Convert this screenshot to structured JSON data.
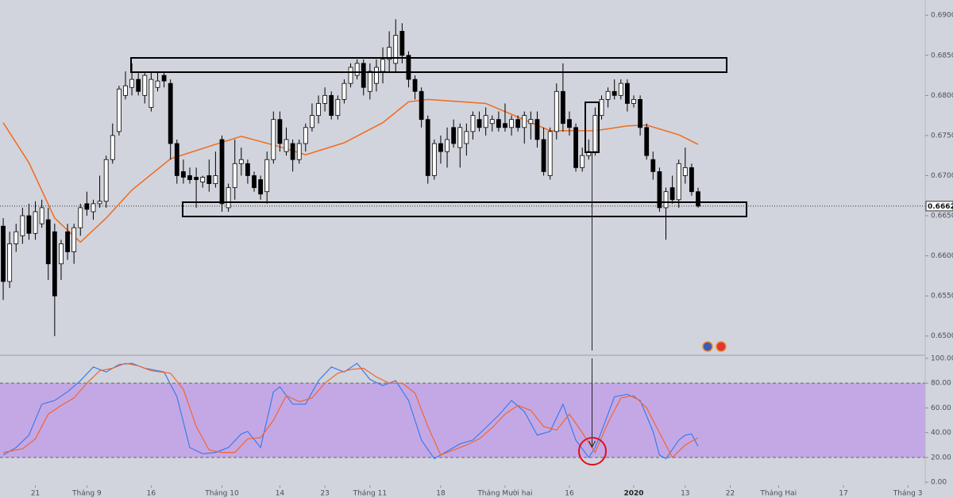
{
  "chart_data": [
    {
      "type": "candlestick",
      "up_color": "#ffffff",
      "down_color": "#000000",
      "wick_color": "#000000",
      "xlim": [
        -0.5,
        143.3
      ],
      "ylim": [
        0.6476,
        0.6919
      ],
      "xticks": [
        {
          "value": 5,
          "label": "21"
        },
        {
          "value": 13,
          "label": "Tháng 9"
        },
        {
          "value": 23,
          "label": "16"
        },
        {
          "value": 34,
          "label": "Tháng 10"
        },
        {
          "value": 43,
          "label": "14"
        },
        {
          "value": 50,
          "label": "23"
        },
        {
          "value": 57,
          "label": "Tháng 11"
        },
        {
          "value": 68,
          "label": "18"
        },
        {
          "value": 78,
          "label": "Tháng Mười hai"
        },
        {
          "value": 88,
          "label": "16"
        },
        {
          "value": 98,
          "label": "2020",
          "bold": true
        },
        {
          "value": 106,
          "label": "13"
        },
        {
          "value": 113,
          "label": "22"
        },
        {
          "value": 120.5,
          "label": "Tháng Hai"
        },
        {
          "value": 130.6,
          "label": "17"
        },
        {
          "value": 140.6,
          "label": "Tháng 3"
        }
      ],
      "yticks": [
        {
          "value": 0.65,
          "label": "0.65000"
        },
        {
          "value": 0.655,
          "label": "0.65500"
        },
        {
          "value": 0.66,
          "label": "0.66000"
        },
        {
          "value": 0.665,
          "label": "0.66500"
        },
        {
          "value": 0.67,
          "label": "0.67000"
        },
        {
          "value": 0.675,
          "label": "0.67500"
        },
        {
          "value": 0.68,
          "label": "0.68000"
        },
        {
          "value": 0.685,
          "label": "0.68500"
        },
        {
          "value": 0.69,
          "label": "0.69000"
        }
      ],
      "open": [
        0.6637,
        0.6568,
        0.6615,
        0.6625,
        0.665,
        0.6628,
        0.664,
        0.6645,
        0.663,
        0.659,
        0.663,
        0.6605,
        0.6635,
        0.6665,
        0.6655,
        0.6665,
        0.6668,
        0.672,
        0.6755,
        0.68,
        0.681,
        0.682,
        0.68,
        0.6785,
        0.681,
        0.6825,
        0.6815,
        0.674,
        0.6705,
        0.67,
        0.6698,
        0.6692,
        0.67,
        0.669,
        0.6745,
        0.666,
        0.6685,
        0.6715,
        0.6715,
        0.67,
        0.6695,
        0.668,
        0.672,
        0.677,
        0.673,
        0.674,
        0.672,
        0.674,
        0.676,
        0.6775,
        0.679,
        0.68,
        0.6775,
        0.6795,
        0.6815,
        0.6825,
        0.684,
        0.6805,
        0.6815,
        0.683,
        0.6845,
        0.684,
        0.688,
        0.685,
        0.682,
        0.6805,
        0.677,
        0.67,
        0.674,
        0.673,
        0.676,
        0.6735,
        0.674,
        0.6755,
        0.677,
        0.676,
        0.6765,
        0.677,
        0.6765,
        0.676,
        0.677,
        0.676,
        0.6765,
        0.677,
        0.6745,
        0.67,
        0.6755,
        0.6805,
        0.677,
        0.676,
        0.671,
        0.6725,
        0.673,
        0.6775,
        0.6795,
        0.6805,
        0.68,
        0.6815,
        0.679,
        0.6795,
        0.676,
        0.672,
        0.6705,
        0.666,
        0.6685,
        0.667,
        0.67,
        0.671,
        0.668
      ],
      "high": [
        0.6647,
        0.663,
        0.664,
        0.666,
        0.6665,
        0.6668,
        0.667,
        0.666,
        0.664,
        0.662,
        0.664,
        0.664,
        0.6665,
        0.668,
        0.667,
        0.67,
        0.6725,
        0.6765,
        0.6812,
        0.683,
        0.684,
        0.683,
        0.683,
        0.683,
        0.683,
        0.683,
        0.682,
        0.6745,
        0.672,
        0.671,
        0.671,
        0.67,
        0.672,
        0.673,
        0.675,
        0.669,
        0.6745,
        0.6735,
        0.672,
        0.6705,
        0.67,
        0.673,
        0.678,
        0.678,
        0.676,
        0.6745,
        0.6745,
        0.6765,
        0.679,
        0.68,
        0.681,
        0.6805,
        0.68,
        0.682,
        0.684,
        0.6845,
        0.6845,
        0.684,
        0.6845,
        0.686,
        0.688,
        0.6895,
        0.689,
        0.6855,
        0.6825,
        0.681,
        0.6775,
        0.6745,
        0.675,
        0.676,
        0.677,
        0.6765,
        0.6765,
        0.678,
        0.678,
        0.6785,
        0.6775,
        0.678,
        0.679,
        0.6775,
        0.6775,
        0.678,
        0.678,
        0.678,
        0.676,
        0.676,
        0.6815,
        0.684,
        0.678,
        0.6765,
        0.6735,
        0.6745,
        0.6785,
        0.68,
        0.681,
        0.682,
        0.682,
        0.682,
        0.68,
        0.68,
        0.6765,
        0.673,
        0.671,
        0.6685,
        0.67,
        0.672,
        0.6735,
        0.6715,
        0.6685
      ],
      "low": [
        0.6545,
        0.656,
        0.6605,
        0.6615,
        0.662,
        0.662,
        0.6635,
        0.657,
        0.65,
        0.657,
        0.6595,
        0.659,
        0.6625,
        0.665,
        0.6645,
        0.666,
        0.666,
        0.6715,
        0.675,
        0.6795,
        0.68,
        0.68,
        0.679,
        0.678,
        0.6805,
        0.681,
        0.672,
        0.669,
        0.669,
        0.669,
        0.666,
        0.6685,
        0.668,
        0.6685,
        0.6655,
        0.6655,
        0.667,
        0.67,
        0.669,
        0.668,
        0.667,
        0.6665,
        0.6715,
        0.673,
        0.6725,
        0.6705,
        0.6715,
        0.673,
        0.6755,
        0.6765,
        0.678,
        0.677,
        0.677,
        0.679,
        0.681,
        0.682,
        0.68,
        0.6795,
        0.6805,
        0.6815,
        0.683,
        0.683,
        0.684,
        0.681,
        0.6795,
        0.676,
        0.669,
        0.6695,
        0.6715,
        0.671,
        0.6735,
        0.671,
        0.6725,
        0.6745,
        0.6755,
        0.675,
        0.6755,
        0.6755,
        0.6755,
        0.675,
        0.6755,
        0.674,
        0.6745,
        0.6735,
        0.67,
        0.6695,
        0.6745,
        0.6755,
        0.675,
        0.6705,
        0.6705,
        0.672,
        0.6725,
        0.677,
        0.6785,
        0.6795,
        0.6795,
        0.678,
        0.6785,
        0.675,
        0.672,
        0.6695,
        0.6655,
        0.662,
        0.6665,
        0.666,
        0.669,
        0.6675,
        0.666
      ],
      "close": [
        0.6568,
        0.6615,
        0.663,
        0.665,
        0.6628,
        0.6655,
        0.666,
        0.659,
        0.655,
        0.6615,
        0.6605,
        0.6635,
        0.666,
        0.6658,
        0.6665,
        0.6668,
        0.672,
        0.675,
        0.6808,
        0.6812,
        0.682,
        0.6805,
        0.6825,
        0.682,
        0.6818,
        0.6818,
        0.674,
        0.67,
        0.6698,
        0.6695,
        0.6695,
        0.6698,
        0.669,
        0.67,
        0.6665,
        0.6685,
        0.6715,
        0.672,
        0.67,
        0.6685,
        0.6677,
        0.672,
        0.677,
        0.674,
        0.6745,
        0.672,
        0.674,
        0.676,
        0.6775,
        0.679,
        0.68,
        0.6775,
        0.6795,
        0.6815,
        0.6835,
        0.684,
        0.681,
        0.683,
        0.6835,
        0.6845,
        0.686,
        0.6875,
        0.685,
        0.682,
        0.6805,
        0.677,
        0.67,
        0.674,
        0.673,
        0.6745,
        0.674,
        0.676,
        0.6755,
        0.6775,
        0.676,
        0.6775,
        0.677,
        0.676,
        0.676,
        0.677,
        0.676,
        0.6775,
        0.677,
        0.6745,
        0.6705,
        0.6755,
        0.6805,
        0.6765,
        0.676,
        0.671,
        0.6725,
        0.673,
        0.6775,
        0.6795,
        0.6805,
        0.68,
        0.6815,
        0.679,
        0.6795,
        0.676,
        0.6725,
        0.6705,
        0.666,
        0.668,
        0.667,
        0.6715,
        0.671,
        0.668,
        0.6662
      ],
      "overlays": [
        {
          "color": "#f26a1b",
          "x": [
            0,
            4,
            8,
            12,
            16,
            20,
            26,
            33,
            37,
            43,
            47,
            53,
            59,
            63,
            66,
            75,
            85,
            92,
            97,
            100,
            105,
            108
          ],
          "values": [
            0.6766,
            0.6716,
            0.6647,
            0.6617,
            0.6647,
            0.6682,
            0.6721,
            0.6739,
            0.6749,
            0.6736,
            0.6726,
            0.6741,
            0.6766,
            0.6792,
            0.6795,
            0.679,
            0.6756,
            0.6756,
            0.6762,
            0.6763,
            0.6751,
            0.6739
          ]
        }
      ],
      "last_price": 0.6662,
      "last_price_label": "0.66620"
    },
    {
      "type": "oscillator",
      "ylim": [
        -2.5,
        102.5
      ],
      "yticks": [
        {
          "value": 0,
          "label": "0.00"
        },
        {
          "value": 20,
          "label": "20.00"
        },
        {
          "value": 40,
          "label": "40.00"
        },
        {
          "value": 60,
          "label": "60.00"
        },
        {
          "value": 80,
          "label": "80.00"
        },
        {
          "value": 100,
          "label": "100.00"
        }
      ],
      "band": [
        20,
        80
      ],
      "band_color": "#c4a8e6",
      "series": [
        {
          "color": "#3d7bea",
          "x": [
            0,
            2,
            4,
            6,
            8,
            10,
            12,
            14,
            16,
            18,
            20,
            22,
            25,
            27,
            29,
            31,
            33,
            35,
            37,
            38,
            40,
            42,
            43,
            45,
            47,
            49,
            51,
            53,
            55,
            57,
            59,
            61,
            63,
            65,
            67,
            69,
            71,
            73,
            75,
            77,
            79,
            81,
            83,
            85,
            87,
            89,
            91,
            92,
            93,
            95,
            97,
            99,
            101,
            102,
            103,
            105,
            106,
            107,
            108
          ],
          "values": [
            22,
            28,
            38,
            63,
            66,
            73,
            82,
            93,
            89,
            95,
            96,
            92,
            89,
            69,
            28,
            23,
            24,
            28,
            39,
            41,
            28,
            73,
            77,
            63,
            63,
            82,
            93,
            89,
            96,
            83,
            78,
            82,
            66,
            34,
            19,
            25,
            31,
            34,
            44,
            54,
            66,
            57,
            38,
            41,
            63,
            34,
            20,
            28,
            41,
            69,
            71,
            66,
            41,
            22,
            19,
            34,
            38,
            39,
            29
          ]
        },
        {
          "color": "#f2652d",
          "x": [
            0,
            3,
            5,
            7,
            9,
            11,
            13,
            15,
            17,
            19,
            21,
            23,
            26,
            28,
            30,
            32,
            34,
            36,
            38,
            40,
            42,
            44,
            46,
            48,
            50,
            52,
            54,
            56,
            58,
            60,
            62,
            64,
            66,
            68,
            70,
            72,
            74,
            76,
            78,
            80,
            82,
            84,
            86,
            88,
            90,
            92,
            94,
            96,
            98,
            100,
            102,
            104,
            106,
            108
          ],
          "values": [
            24,
            27,
            35,
            55,
            62,
            68,
            80,
            90,
            92,
            96,
            94,
            90,
            88,
            75,
            45,
            26,
            24,
            24,
            35,
            36,
            50,
            70,
            65,
            68,
            80,
            88,
            91,
            92,
            85,
            80,
            80,
            72,
            45,
            22,
            26,
            30,
            35,
            44,
            55,
            62,
            58,
            45,
            42,
            55,
            40,
            24,
            48,
            68,
            70,
            60,
            40,
            20,
            30,
            36
          ]
        }
      ]
    }
  ]
}
